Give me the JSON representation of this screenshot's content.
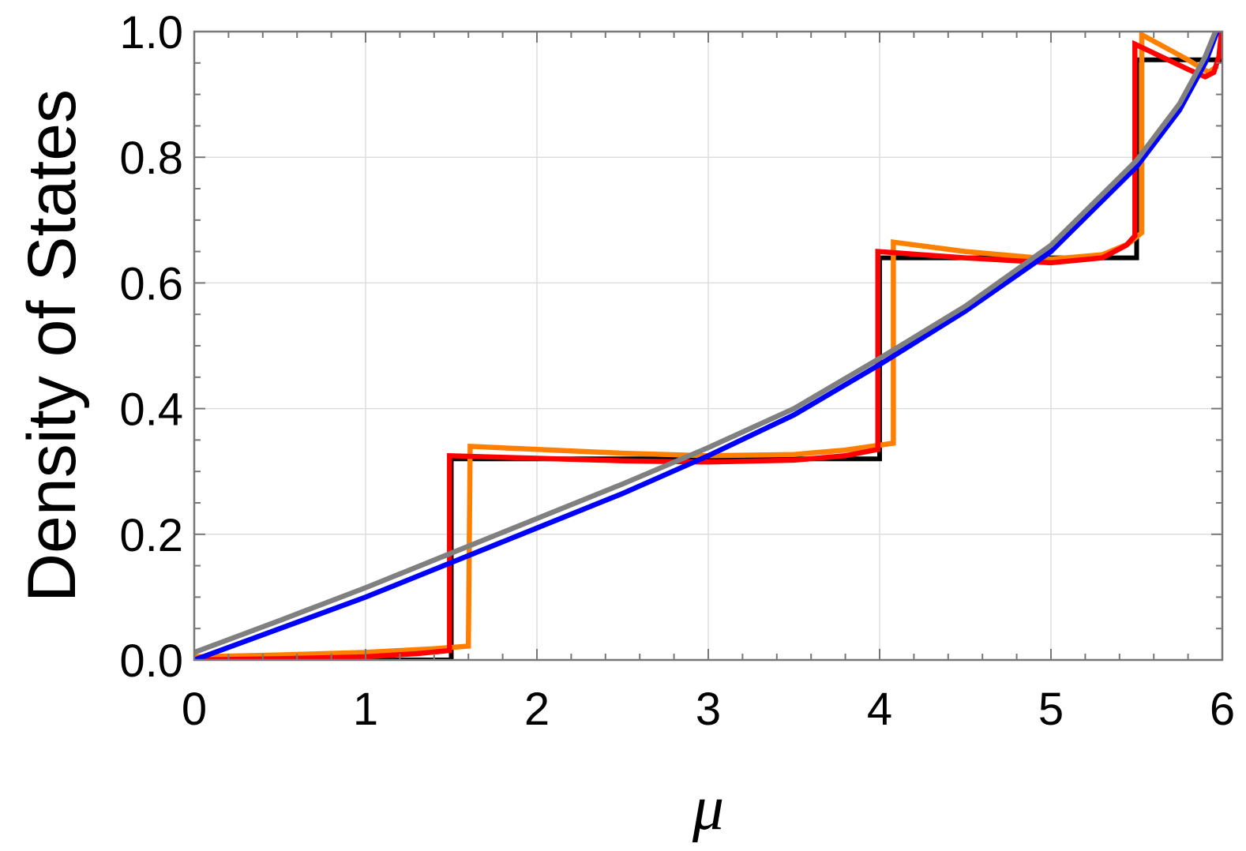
{
  "chart_data": {
    "type": "line",
    "title": "",
    "xlabel": "μ",
    "ylabel": "Density of States",
    "xlim": [
      0,
      6
    ],
    "ylim": [
      0,
      1
    ],
    "xticks": [
      0,
      1,
      2,
      3,
      4,
      5,
      6
    ],
    "xtick_labels": [
      "0",
      "1",
      "2",
      "3",
      "4",
      "5",
      "6"
    ],
    "yticks": [
      0,
      0.2,
      0.4,
      0.6,
      0.8,
      1.0
    ],
    "ytick_labels": [
      "0.0",
      "0.2",
      "0.4",
      "0.6",
      "0.8",
      "1.0"
    ],
    "x_minor_step": 0.2,
    "y_minor_step": 0.05,
    "grid": true,
    "legend": "none",
    "series": [
      {
        "color": "#000000",
        "points": [
          [
            0,
            0
          ],
          [
            1.5,
            0
          ],
          [
            1.5,
            0.32
          ],
          [
            4.0,
            0.32
          ],
          [
            4.0,
            0.64
          ],
          [
            5.5,
            0.64
          ],
          [
            5.5,
            0.955
          ],
          [
            6,
            0.955
          ]
        ]
      },
      {
        "color": "#ff8000",
        "points": [
          [
            0,
            0.005
          ],
          [
            0.5,
            0.008
          ],
          [
            1,
            0.012
          ],
          [
            1.4,
            0.018
          ],
          [
            1.6,
            0.022
          ],
          [
            1.61,
            0.34
          ],
          [
            2,
            0.335
          ],
          [
            2.5,
            0.329
          ],
          [
            3,
            0.325
          ],
          [
            3.5,
            0.327
          ],
          [
            3.8,
            0.334
          ],
          [
            4.08,
            0.345
          ],
          [
            4.08,
            0.665
          ],
          [
            4.5,
            0.65
          ],
          [
            5,
            0.638
          ],
          [
            5.3,
            0.645
          ],
          [
            5.45,
            0.662
          ],
          [
            5.53,
            0.68
          ],
          [
            5.53,
            0.995
          ],
          [
            5.8,
            0.955
          ],
          [
            5.92,
            0.935
          ],
          [
            5.97,
            0.945
          ]
        ]
      },
      {
        "color": "#ff0000",
        "points": [
          [
            0,
            0
          ],
          [
            0.5,
            0.002
          ],
          [
            1,
            0.005
          ],
          [
            1.3,
            0.01
          ],
          [
            1.49,
            0.015
          ],
          [
            1.49,
            0.325
          ],
          [
            2,
            0.321
          ],
          [
            2.5,
            0.317
          ],
          [
            3,
            0.315
          ],
          [
            3.5,
            0.318
          ],
          [
            3.8,
            0.325
          ],
          [
            3.99,
            0.335
          ],
          [
            3.99,
            0.65
          ],
          [
            4.5,
            0.64
          ],
          [
            5,
            0.632
          ],
          [
            5.3,
            0.64
          ],
          [
            5.44,
            0.66
          ],
          [
            5.49,
            0.675
          ],
          [
            5.49,
            0.98
          ],
          [
            5.8,
            0.94
          ],
          [
            5.9,
            0.928
          ],
          [
            5.95,
            0.935
          ],
          [
            5.98,
            0.96
          ],
          [
            5.995,
            1.0
          ]
        ]
      },
      {
        "color": "#0000ff",
        "points": [
          [
            0,
            0
          ],
          [
            0.5,
            0.05
          ],
          [
            1,
            0.1
          ],
          [
            1.5,
            0.155
          ],
          [
            2,
            0.21
          ],
          [
            2.5,
            0.265
          ],
          [
            3,
            0.325
          ],
          [
            3.5,
            0.39
          ],
          [
            4,
            0.47
          ],
          [
            4.5,
            0.555
          ],
          [
            5,
            0.65
          ],
          [
            5.5,
            0.785
          ],
          [
            5.75,
            0.875
          ],
          [
            5.9,
            0.95
          ],
          [
            5.97,
            1.0
          ]
        ]
      },
      {
        "color": "#808080",
        "points": [
          [
            0,
            0.012
          ],
          [
            0.5,
            0.063
          ],
          [
            1,
            0.115
          ],
          [
            1.5,
            0.17
          ],
          [
            2,
            0.225
          ],
          [
            2.5,
            0.28
          ],
          [
            3,
            0.338
          ],
          [
            3.5,
            0.4
          ],
          [
            4,
            0.48
          ],
          [
            4.5,
            0.563
          ],
          [
            5,
            0.66
          ],
          [
            5.5,
            0.795
          ],
          [
            5.75,
            0.885
          ],
          [
            5.9,
            0.96
          ],
          [
            5.96,
            1.0
          ]
        ]
      }
    ]
  }
}
